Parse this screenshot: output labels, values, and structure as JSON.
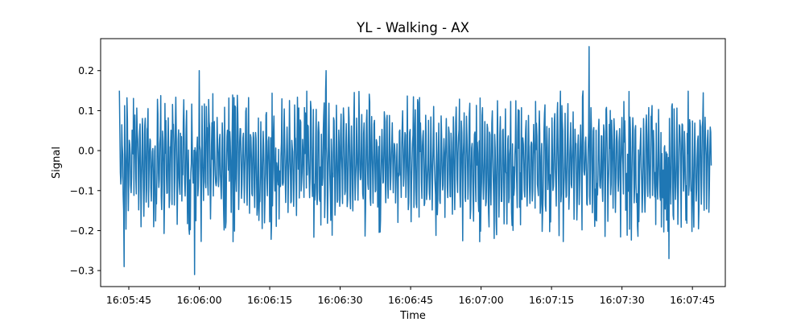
{
  "chart_data": {
    "type": "line",
    "title": "YL - Walking - AX",
    "xlabel": "Time",
    "ylabel": "Signal",
    "x_range": [
      "16:05:43",
      "16:07:49"
    ],
    "x_ticks": [
      "16:05:45",
      "16:06:00",
      "16:06:15",
      "16:06:30",
      "16:06:45",
      "16:07:00",
      "16:07:15",
      "16:07:30",
      "16:07:45"
    ],
    "y_ticks": [
      0.2,
      0.1,
      0.0,
      -0.1,
      -0.2,
      -0.3
    ],
    "y_tick_labels": [
      "0.2",
      "0.1",
      "0.0",
      "−0.1",
      "−0.2",
      "−0.3"
    ],
    "xlim": [
      "16:05:39",
      "16:07:52"
    ],
    "ylim": [
      -0.34,
      0.28
    ],
    "grid": false,
    "legend": "none",
    "series": [
      {
        "color": "#1f77b4",
        "sampling": "about 10 samples per second; dense oscillating signal",
        "notable_points": [
          {
            "t": "16:05:43",
            "value": 0.15
          },
          {
            "t": "16:05:44",
            "value": -0.29
          },
          {
            "t": "16:06:00",
            "value": 0.2
          },
          {
            "t": "16:05:59",
            "value": -0.31
          },
          {
            "t": "16:06:27",
            "value": 0.2
          },
          {
            "t": "16:07:23",
            "value": 0.26
          },
          {
            "t": "16:07:40",
            "value": -0.27
          }
        ]
      }
    ]
  }
}
